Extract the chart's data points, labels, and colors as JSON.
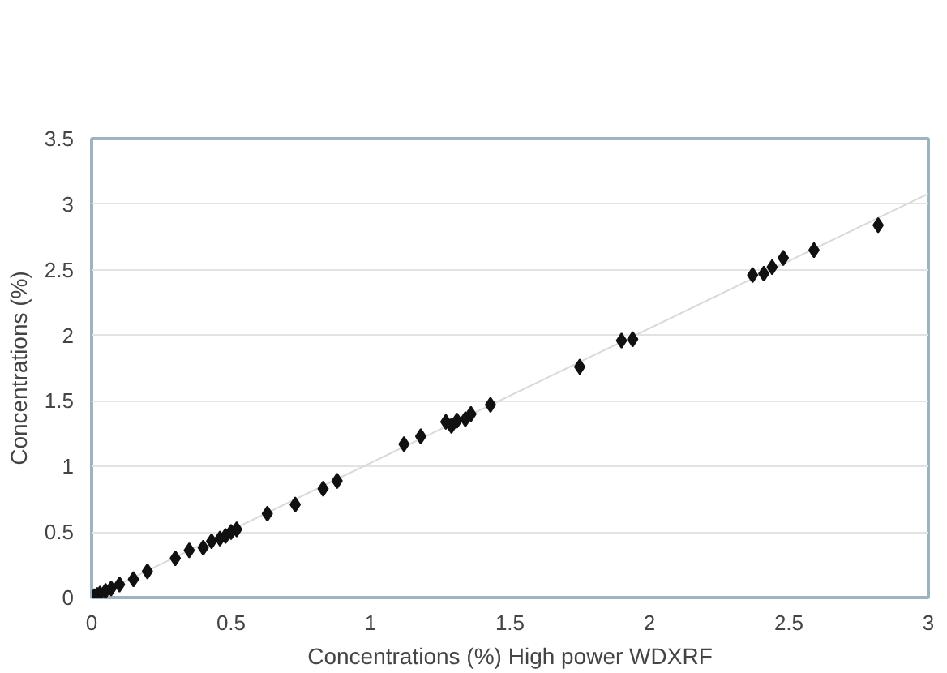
{
  "chart_data": {
    "type": "scatter",
    "xlabel": "Concentrations (%) High power WDXRF",
    "ylabel": "Concentrations (%)",
    "xlim": [
      0,
      3
    ],
    "ylim": [
      0,
      3.5
    ],
    "xticks": [
      0,
      0.5,
      1,
      1.5,
      2,
      2.5,
      3
    ],
    "yticks": [
      0,
      0.5,
      1,
      1.5,
      2,
      2.5,
      3,
      3.5
    ],
    "grid": "y",
    "series": [
      {
        "color": "#111111",
        "marker": "diamond",
        "x": [
          0.01,
          0.02,
          0.03,
          0.05,
          0.07,
          0.1,
          0.15,
          0.2,
          0.3,
          0.35,
          0.4,
          0.43,
          0.46,
          0.48,
          0.5,
          0.52,
          0.63,
          0.73,
          0.83,
          0.88,
          1.12,
          1.18,
          1.27,
          1.29,
          1.31,
          1.34,
          1.36,
          1.43,
          1.75,
          1.9,
          1.94,
          2.37,
          2.41,
          2.44,
          2.48,
          2.59,
          2.82
        ],
        "values": [
          0.01,
          0.02,
          0.03,
          0.05,
          0.07,
          0.1,
          0.14,
          0.2,
          0.3,
          0.36,
          0.38,
          0.43,
          0.45,
          0.47,
          0.5,
          0.52,
          0.64,
          0.71,
          0.83,
          0.89,
          1.17,
          1.23,
          1.34,
          1.31,
          1.35,
          1.36,
          1.4,
          1.47,
          1.76,
          1.96,
          1.97,
          2.46,
          2.47,
          2.52,
          2.59,
          2.65,
          2.84
        ]
      },
      {
        "type": "line",
        "color": "#d9d9d9",
        "x": [
          0,
          3
        ],
        "values": [
          0,
          3.08
        ]
      }
    ]
  }
}
